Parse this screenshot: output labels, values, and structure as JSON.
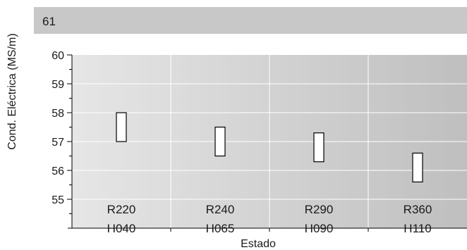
{
  "chart_data": {
    "type": "bar",
    "subtype": "floating-range",
    "ylabel": "Cond. Eléctrica (MS/m)",
    "xlabel": "Estado",
    "ylim": [
      54,
      61
    ],
    "y_ticks": [
      55,
      56,
      57,
      58,
      59,
      60
    ],
    "top_band_label": "61",
    "grid": true,
    "categories": [
      {
        "line1": "R220",
        "line2": "H040",
        "low": 57.0,
        "high": 58.0
      },
      {
        "line1": "R240",
        "line2": "H065",
        "low": 56.5,
        "high": 57.5
      },
      {
        "line1": "R290",
        "line2": "H090",
        "low": 56.3,
        "high": 57.3
      },
      {
        "line1": "R360",
        "line2": "H110",
        "low": 55.6,
        "high": 56.6
      }
    ],
    "colors": {
      "plot_bg_left": "#e6e6e6",
      "plot_bg_right": "#bfbfbf",
      "top_band": "#c8c8c8",
      "box_fill": "#ffffff",
      "box_stroke": "#000000",
      "axis": "#000000",
      "grid": "#ffffff"
    }
  }
}
